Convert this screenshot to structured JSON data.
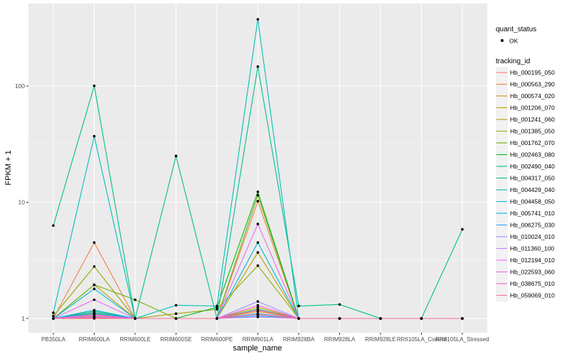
{
  "chart_data": {
    "type": "line",
    "title": "",
    "xlabel": "sample_name",
    "ylabel": "FPKM + 1",
    "y_scale": "log10",
    "ylim": [
      0.9,
      450
    ],
    "y_ticks": [
      1,
      10,
      100
    ],
    "y_tick_labels": [
      "1",
      "10",
      "100"
    ],
    "grid": true,
    "legend_position": "right",
    "background_color": "#ebebeb",
    "grid_color": "#ffffff",
    "categories": [
      "PB350LA",
      "RRIM600LA",
      "RRIM600LE",
      "RRIM600SE",
      "RRIM600PE",
      "RRIM901LA",
      "RRIM928BA",
      "RRIM928LA",
      "RRIM928LE",
      "RRII105LA_Control",
      "RRII105LA_Stressed"
    ],
    "shape_legend": {
      "title": "quant_status",
      "items": [
        "OK"
      ]
    },
    "color_legend_title": "tracking_id",
    "series": [
      {
        "name": "Hb_000195_050",
        "color": "#F8766D",
        "values": [
          1,
          1,
          1,
          1,
          1,
          1.1,
          1,
          1,
          1,
          1,
          1
        ]
      },
      {
        "name": "Hb_000563_290",
        "color": "#F07F4A",
        "values": [
          1,
          4.5,
          1,
          1,
          1,
          10.2,
          1,
          1,
          1,
          1,
          1
        ]
      },
      {
        "name": "Hb_000574_020",
        "color": "#E38900",
        "values": [
          1,
          1.05,
          1,
          1,
          1,
          1.15,
          1,
          1,
          1,
          1,
          1
        ]
      },
      {
        "name": "Hb_001206_070",
        "color": "#D09400",
        "values": [
          1,
          1.1,
          1,
          1,
          1,
          1.25,
          1,
          1,
          1,
          1,
          1
        ]
      },
      {
        "name": "Hb_001241_060",
        "color": "#B79F00",
        "values": [
          1,
          1.95,
          1,
          1,
          1,
          3.7,
          1,
          1,
          1,
          1,
          1
        ]
      },
      {
        "name": "Hb_001385_050",
        "color": "#9AA800",
        "values": [
          1.05,
          2.8,
          1,
          1.1,
          1.2,
          2.85,
          1,
          1,
          1,
          1,
          1
        ]
      },
      {
        "name": "Hb_001762_070",
        "color": "#71B000",
        "values": [
          1,
          1.95,
          1.45,
          1,
          1,
          11.5,
          1,
          1,
          1,
          1,
          1
        ]
      },
      {
        "name": "Hb_002463_080",
        "color": "#00B81F",
        "values": [
          1,
          1.15,
          1,
          1,
          1.25,
          12.3,
          1,
          1,
          1,
          1,
          1
        ]
      },
      {
        "name": "Hb_002490_040",
        "color": "#00BE6C",
        "values": [
          1,
          1.1,
          1,
          1,
          1,
          1.2,
          1,
          1,
          1,
          1,
          1
        ]
      },
      {
        "name": "Hb_004317_050",
        "color": "#00C08B",
        "values": [
          6.3,
          100.5,
          1,
          25,
          1,
          147,
          1.28,
          1.32,
          1,
          1,
          5.85
        ]
      },
      {
        "name": "Hb_004429_040",
        "color": "#00C0B8",
        "values": [
          1.12,
          37,
          1,
          1.3,
          1.28,
          375,
          1,
          1,
          1,
          1,
          1
        ]
      },
      {
        "name": "Hb_004458_050",
        "color": "#00BCD8",
        "values": [
          1,
          1.8,
          1,
          1,
          1,
          4.5,
          1,
          1,
          1,
          1,
          1
        ]
      },
      {
        "name": "Hb_005741_010",
        "color": "#00B0F6",
        "values": [
          1,
          1.18,
          1,
          1,
          1,
          1.05,
          1,
          1,
          1,
          1,
          1
        ]
      },
      {
        "name": "Hb_006275_030",
        "color": "#35A2FF",
        "values": [
          1,
          1.12,
          1,
          1,
          1,
          1.1,
          1,
          1,
          1,
          1,
          1
        ]
      },
      {
        "name": "Hb_010024_010",
        "color": "#9590FF",
        "values": [
          1,
          1.03,
          1,
          1,
          1,
          1.4,
          1,
          1,
          1,
          1,
          1
        ]
      },
      {
        "name": "Hb_011360_100",
        "color": "#C77CFF",
        "values": [
          1,
          1.08,
          1,
          1,
          1,
          1.03,
          1,
          1,
          1,
          1,
          1
        ]
      },
      {
        "name": "Hb_012194_010",
        "color": "#E76BF3",
        "values": [
          1,
          1.45,
          1,
          1,
          1,
          6.5,
          1,
          1,
          1,
          1,
          1
        ]
      },
      {
        "name": "Hb_022593_060",
        "color": "#F763E0",
        "values": [
          1,
          1.02,
          1,
          1,
          1,
          1.3,
          1,
          1,
          1,
          1,
          1
        ]
      },
      {
        "name": "Hb_038675_010",
        "color": "#FF62BC",
        "values": [
          1,
          1.06,
          1,
          1,
          1,
          1.18,
          1,
          1,
          1,
          1,
          1
        ]
      },
      {
        "name": "Hb_059069_010",
        "color": "#FF6C91",
        "values": [
          1,
          1.01,
          1,
          1,
          1,
          1.08,
          1,
          1,
          1,
          1,
          1
        ]
      }
    ]
  }
}
